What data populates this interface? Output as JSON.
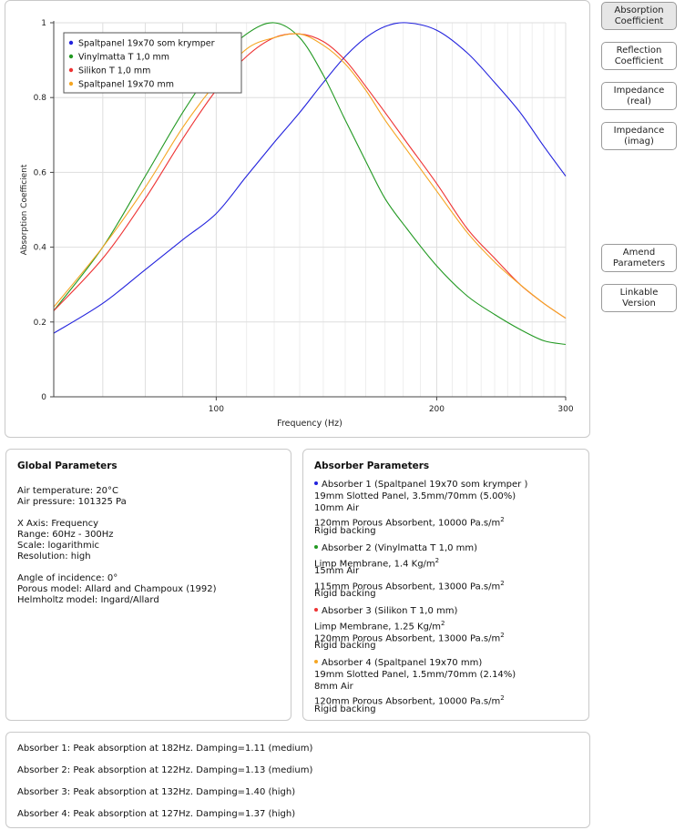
{
  "buttons": {
    "absorption": [
      "Absorption",
      "Coefficient"
    ],
    "reflection": [
      "Reflection",
      "Coefficient"
    ],
    "impedance_real": [
      "Impedance",
      "(real)"
    ],
    "impedance_imag": [
      "Impedance",
      "(imag)"
    ],
    "amend": [
      "Amend",
      "Parameters"
    ],
    "linkable": [
      "Linkable",
      "Version"
    ]
  },
  "chart_data": {
    "type": "line",
    "xlabel": "Frequency (Hz)",
    "ylabel": "Absorption Coefficient",
    "xscale": "log",
    "xlim": [
      60,
      300
    ],
    "ylim": [
      0,
      1
    ],
    "x_ticks": [
      100,
      200,
      300
    ],
    "x_tick_labels": [
      "100",
      "200",
      "300"
    ],
    "y_ticks": [
      0,
      0.2,
      0.4,
      0.6,
      0.8,
      1
    ],
    "y_tick_labels": [
      "0",
      "0.2",
      "0.4",
      "0.6",
      "0.8",
      "1"
    ],
    "grid": true,
    "legend_position": "top-left",
    "x": [
      60,
      70,
      80,
      90,
      100,
      110,
      120,
      130,
      140,
      150,
      160,
      170,
      182,
      200,
      220,
      240,
      260,
      280,
      300
    ],
    "series": [
      {
        "name": "Spaltpanel 19x70 som krymper",
        "color": "#2222dd",
        "values": [
          0.17,
          0.25,
          0.34,
          0.42,
          0.49,
          0.59,
          0.68,
          0.76,
          0.84,
          0.91,
          0.96,
          0.99,
          1.0,
          0.98,
          0.92,
          0.84,
          0.76,
          0.67,
          0.59
        ]
      },
      {
        "name": "Vinylmatta T 1,0 mm",
        "color": "#229922",
        "values": [
          0.23,
          0.4,
          0.59,
          0.76,
          0.89,
          0.97,
          1.0,
          0.96,
          0.86,
          0.74,
          0.63,
          0.53,
          0.45,
          0.35,
          0.27,
          0.22,
          0.18,
          0.15,
          0.14
        ]
      },
      {
        "name": "Silikon T 1,0 mm",
        "color": "#ee3333",
        "values": [
          0.23,
          0.37,
          0.53,
          0.69,
          0.82,
          0.91,
          0.96,
          0.97,
          0.95,
          0.9,
          0.83,
          0.76,
          0.68,
          0.57,
          0.45,
          0.37,
          0.3,
          0.25,
          0.21
        ]
      },
      {
        "name": "Spaltpanel 19x70 mm",
        "color": "#f5a623",
        "values": [
          0.24,
          0.4,
          0.56,
          0.72,
          0.84,
          0.93,
          0.96,
          0.97,
          0.94,
          0.89,
          0.82,
          0.74,
          0.66,
          0.55,
          0.44,
          0.36,
          0.3,
          0.25,
          0.21
        ]
      }
    ]
  },
  "global": {
    "title": "Global Parameters",
    "lines": [
      "Air temperature: 20°C",
      "Air pressure: 101325 Pa",
      "",
      "X Axis: Frequency",
      "Range: 60Hz - 300Hz",
      "Scale: logarithmic",
      "Resolution: high",
      "",
      "Angle of incidence: 0°",
      "Porous model: Allard and Champoux (1992)",
      "Helmholtz model: Ingard/Allard"
    ]
  },
  "absorbers": {
    "title": "Absorber Parameters",
    "items": [
      {
        "color": "#2222dd",
        "heading": "Absorber 1 (Spaltpanel 19x70 som krymper )",
        "lines": [
          "19mm Slotted Panel, 3.5mm/70mm (5.00%)",
          "10mm Air",
          "120mm Porous Absorbent, 10000 Pa.s/m",
          "Rigid backing"
        ]
      },
      {
        "color": "#229922",
        "heading": "Absorber 2 (Vinylmatta T 1,0 mm)",
        "lines": [
          "Limp Membrane, 1.4 Kg/m",
          "15mm Air",
          "115mm Porous Absorbent, 13000 Pa.s/m",
          "Rigid backing"
        ]
      },
      {
        "color": "#ee3333",
        "heading": "Absorber 3 (Silikon T 1,0 mm)",
        "lines": [
          "Limp Membrane, 1.25 Kg/m",
          "120mm Porous Absorbent, 13000 Pa.s/m",
          "Rigid backing"
        ]
      },
      {
        "color": "#f5a623",
        "heading": "Absorber 4 (Spaltpanel 19x70 mm)",
        "lines": [
          "19mm Slotted Panel, 1.5mm/70mm (2.14%)",
          "8mm Air",
          "120mm Porous Absorbent, 10000 Pa.s/m",
          "Rigid backing"
        ]
      }
    ]
  },
  "results": [
    "Absorber 1: Peak absorption at 182Hz. Damping=1.11 (medium)",
    "Absorber 2: Peak absorption at 122Hz. Damping=1.13 (medium)",
    "Absorber 3: Peak absorption at 132Hz. Damping=1.40 (high)",
    "Absorber 4: Peak absorption at 127Hz. Damping=1.37 (high)"
  ]
}
